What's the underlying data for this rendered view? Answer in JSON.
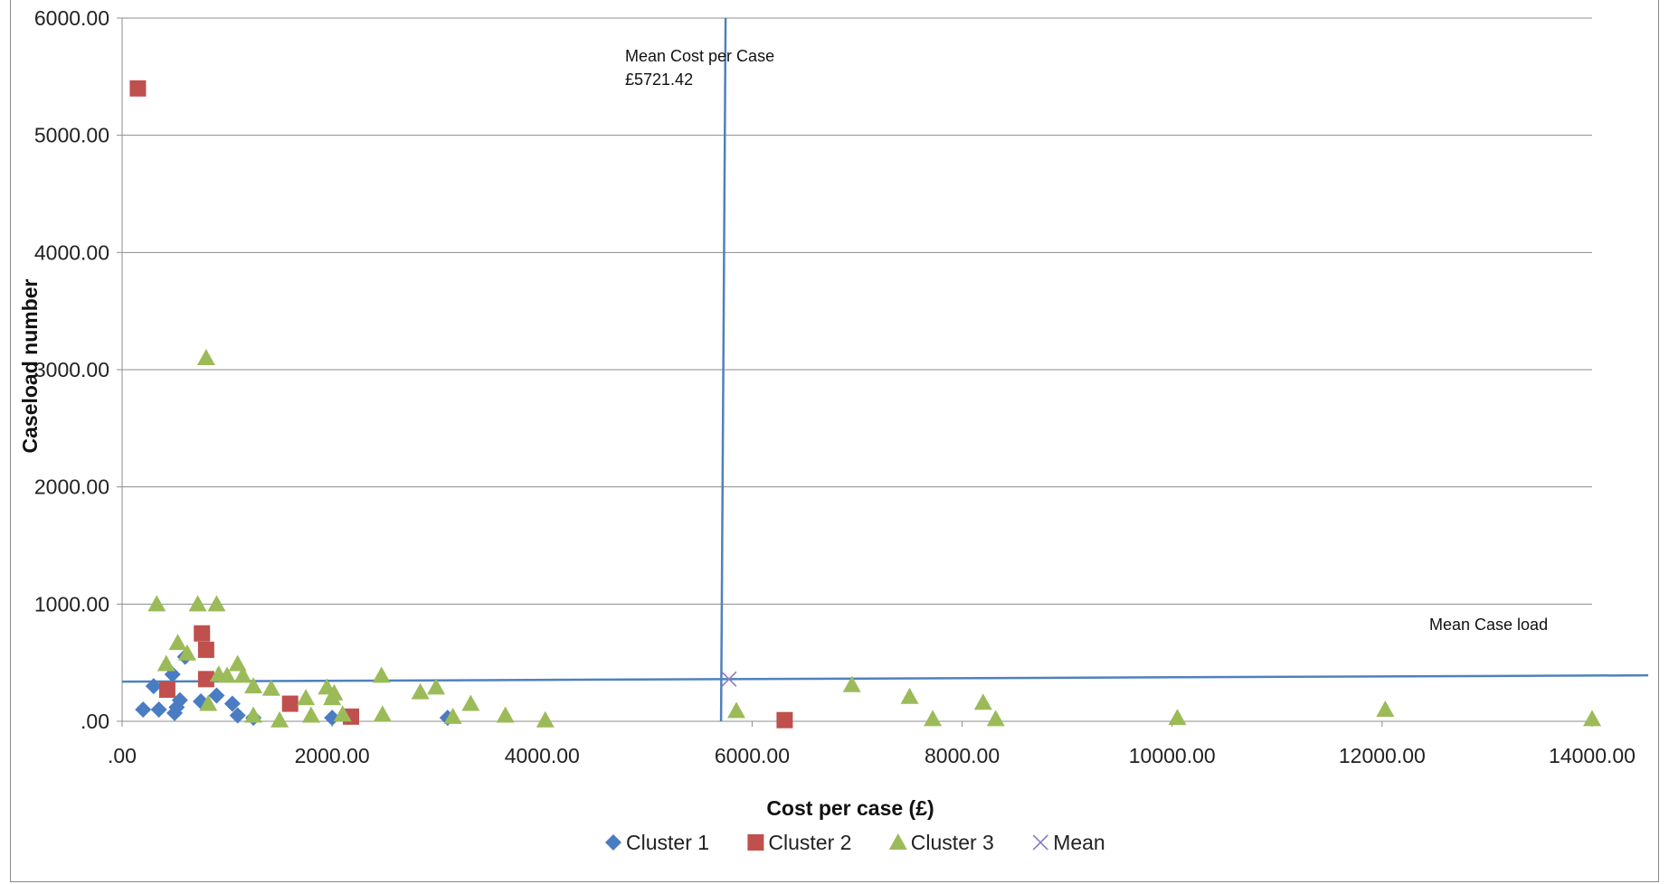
{
  "chart_data": {
    "type": "scatter",
    "xlabel": "Cost per case (£)",
    "ylabel": "Caseload number",
    "xlim": [
      0,
      14000
    ],
    "ylim": [
      0,
      6000
    ],
    "x_ticks": [
      ".00",
      "2000.00",
      "4000.00",
      "6000.00",
      "8000.00",
      "10000.00",
      "12000.00",
      "14000.00"
    ],
    "y_ticks": [
      ".00",
      "1000.00",
      "2000.00",
      "3000.00",
      "4000.00",
      "5000.00",
      "6000.00"
    ],
    "grid": "horizontal",
    "legend_position": "bottom",
    "colors": {
      "cluster1": "#4a7cc2",
      "cluster2": "#c0504d",
      "cluster3": "#9bbb59",
      "mean": "#8e7cc3",
      "mean_lines": "#4f81bd",
      "grid": "#8c8c8c"
    },
    "series": [
      {
        "name": "Cluster 1",
        "marker": "diamond",
        "x": [
          200,
          300,
          350,
          480,
          500,
          520,
          550,
          600,
          750,
          900,
          1050,
          1100,
          1250,
          2000,
          3100
        ],
        "y": [
          100,
          300,
          100,
          400,
          70,
          120,
          180,
          550,
          170,
          220,
          150,
          50,
          30,
          30,
          30
        ]
      },
      {
        "name": "Cluster 2",
        "marker": "square",
        "x": [
          150,
          430,
          760,
          800,
          800,
          1600,
          2180,
          6310
        ],
        "y": [
          5400,
          270,
          750,
          610,
          360,
          150,
          40,
          10
        ]
      },
      {
        "name": "Cluster 3",
        "marker": "triangle",
        "x": [
          330,
          420,
          530,
          620,
          720,
          800,
          820,
          900,
          920,
          1000,
          1100,
          1150,
          1250,
          1250,
          1420,
          1500,
          1750,
          1800,
          1950,
          2000,
          2020,
          2100,
          2470,
          2480,
          2840,
          2990,
          3150,
          3320,
          3650,
          4030,
          5850,
          6950,
          7500,
          7720,
          8200,
          8320,
          10050,
          12030,
          14000
        ],
        "y": [
          1000,
          490,
          670,
          580,
          1000,
          3100,
          150,
          1000,
          400,
          390,
          490,
          390,
          300,
          50,
          280,
          10,
          200,
          50,
          290,
          200,
          240,
          60,
          390,
          60,
          250,
          290,
          40,
          150,
          50,
          10,
          90,
          310,
          210,
          20,
          160,
          20,
          30,
          100,
          20
        ]
      },
      {
        "name": "Mean",
        "marker": "x",
        "x": [
          5780
        ],
        "y": [
          360
        ]
      }
    ],
    "mean_x_line": 5721.42,
    "mean_y_line": 400,
    "annotations": {
      "mean_cost_line1": "Mean Cost per Case",
      "mean_cost_line2": "£5721.42",
      "mean_caseload": "Mean Case load"
    }
  }
}
